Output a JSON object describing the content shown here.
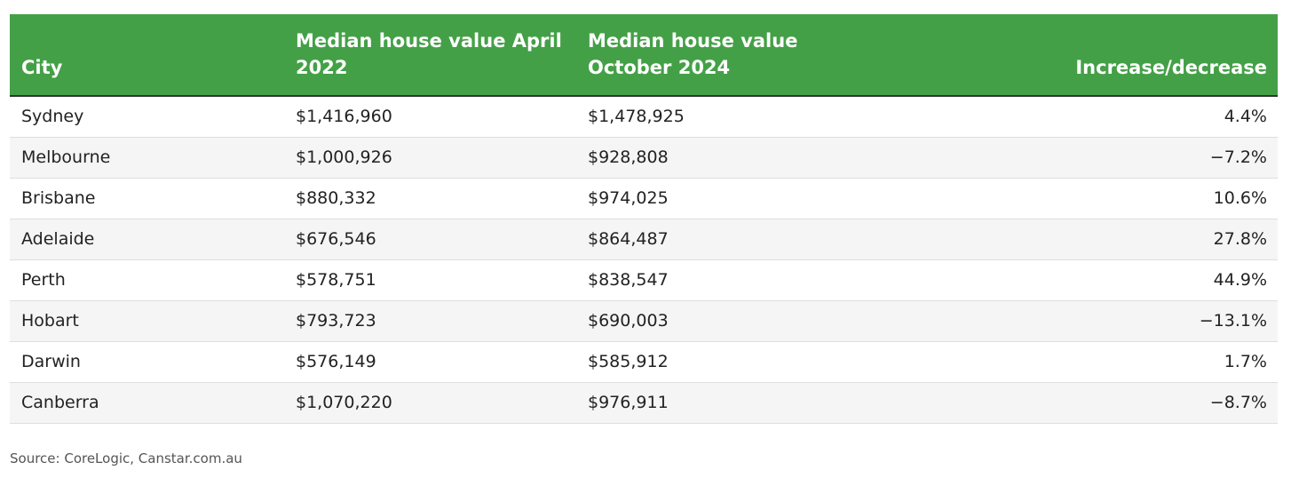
{
  "table": {
    "headers": {
      "city": "City",
      "value_2022": "Median house value April 2022",
      "value_2024": "Median house value October 2024",
      "change": "Increase/decrease"
    },
    "rows": [
      {
        "city": "Sydney",
        "value_2022": "$1,416,960",
        "value_2024": "$1,478,925",
        "change": "4.4%"
      },
      {
        "city": "Melbourne",
        "value_2022": "$1,000,926",
        "value_2024": "$928,808",
        "change": "−7.2%"
      },
      {
        "city": "Brisbane",
        "value_2022": "$880,332",
        "value_2024": "$974,025",
        "change": "10.6%"
      },
      {
        "city": "Adelaide",
        "value_2022": "$676,546",
        "value_2024": "$864,487",
        "change": "27.8%"
      },
      {
        "city": "Perth",
        "value_2022": "$578,751",
        "value_2024": "$838,547",
        "change": "44.9%"
      },
      {
        "city": "Hobart",
        "value_2022": "$793,723",
        "value_2024": "$690,003",
        "change": "−13.1%"
      },
      {
        "city": "Darwin",
        "value_2022": "$576,149",
        "value_2024": "$585,912",
        "change": "1.7%"
      },
      {
        "city": "Canberra",
        "value_2022": "$1,070,220",
        "value_2024": "$976,911",
        "change": "−8.7%"
      }
    ]
  },
  "source": "Source: CoreLogic, Canstar.com.au",
  "colors": {
    "header_bg": "#44a047",
    "header_text": "#ffffff",
    "stripe_bg": "#f5f5f5"
  }
}
